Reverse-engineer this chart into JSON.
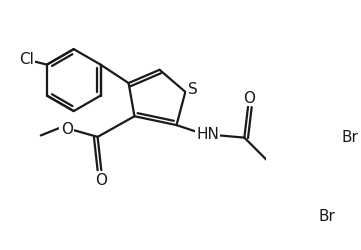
{
  "background": "#ffffff",
  "line_color": "#1a1a1a",
  "bond_width": 1.6,
  "font_size": 11,
  "figsize": [
    3.61,
    2.51
  ],
  "dpi": 100,
  "xlim": [
    0,
    361
  ],
  "ylim": [
    0,
    251
  ]
}
